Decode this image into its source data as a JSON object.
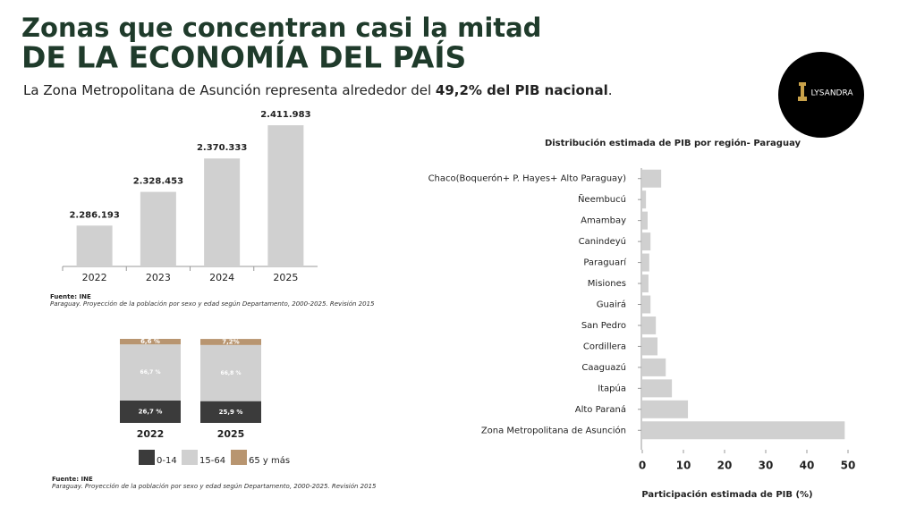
{
  "header": {
    "title_line1": "Zonas que concentran casi la mitad",
    "title_line2": "DE LA ECONOMÍA DEL PAÍS",
    "subtitle_pre": "La Zona Metropolitana de Asunción representa alrededor del ",
    "subtitle_bold": "49,2% del PIB nacional",
    "subtitle_post": "."
  },
  "logo": {
    "name": "LYSANDRA"
  },
  "source_1": {
    "label": "Fuente: INE",
    "text": "Paraguay. Proyección de la población por sexo y edad según Departamento, 2000-2025. Revisión 2015"
  },
  "source_2": {
    "label": "Fuente: INE",
    "text": "Paraguay. Proyección de la población por sexo y edad según Departamento, 2000-2025. Revisión 2015"
  },
  "chart_data": [
    {
      "type": "bar",
      "categories": [
        "2022",
        "2023",
        "2024",
        "2025"
      ],
      "values": [
        2286193,
        2328453,
        2370333,
        2411983
      ],
      "value_labels": [
        "2.286.193",
        "2.328.453",
        "2.370.333",
        "2.411.983"
      ],
      "color": "#d0d0d0",
      "ylim": [
        2235000,
        2430000
      ]
    },
    {
      "type": "stacked_bar",
      "categories": [
        "2022",
        "2025"
      ],
      "ylim": [
        0,
        100
      ],
      "series": [
        {
          "name": "0-14",
          "color": "#3b3b3b",
          "values": [
            26.7,
            25.9
          ],
          "value_labels": [
            "26,7 %",
            "25,9 %"
          ]
        },
        {
          "name": "15-64",
          "color": "#d0d0d0",
          "values": [
            66.7,
            66.8
          ],
          "value_labels": [
            "66,7 %",
            "66,8 %"
          ]
        },
        {
          "name": "65 y más",
          "color": "#b89570",
          "values": [
            6.6,
            7.2
          ],
          "value_labels": [
            "6,6 %",
            "7,2%"
          ]
        }
      ]
    },
    {
      "type": "hbar",
      "title": "Distribución estimada de PIB por región- Paraguay",
      "x_label": "Participación estimada de PIB (%)",
      "categories": [
        "Chaco(Boquerón+ P. Hayes+ Alto Paraguay)",
        "Ñeembucú",
        "Amambay",
        "Canindeyú",
        "Paraguarí",
        "Misiones",
        "Guairá",
        "San Pedro",
        "Cordillera",
        "Caaguazú",
        "Itapúa",
        "Alto Paraná",
        "Zona Metropolitana de Asunción"
      ],
      "values": [
        4.6,
        0.9,
        1.3,
        2.0,
        1.7,
        1.5,
        2.0,
        3.3,
        3.7,
        5.7,
        7.2,
        11.1,
        49.2
      ],
      "color": "#d0d0d0",
      "xlim": [
        0,
        50
      ],
      "xticks": [
        0,
        10,
        20,
        30,
        40,
        50
      ]
    }
  ]
}
